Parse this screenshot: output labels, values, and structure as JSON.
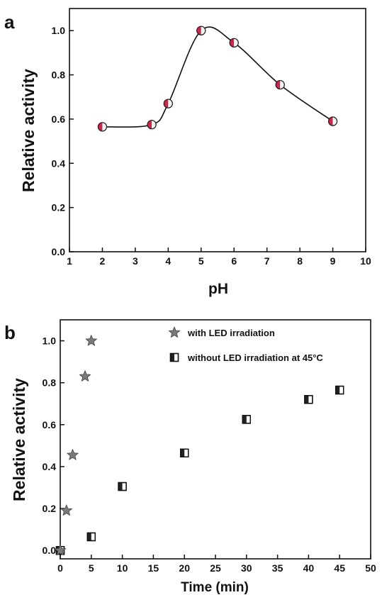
{
  "chart_data": [
    {
      "type": "scatter",
      "panel_label": "a",
      "xlabel": "pH",
      "ylabel": "Relative activity",
      "xlim": [
        1,
        10
      ],
      "ylim": [
        0.0,
        1.1
      ],
      "xticks": [
        "1",
        "2",
        "3",
        "4",
        "5",
        "6",
        "7",
        "8",
        "9",
        "10"
      ],
      "yticks": [
        "0.0",
        "0.2",
        "0.4",
        "0.6",
        "0.8",
        "1.0"
      ],
      "fit_line": "smooth spline through points",
      "series": [
        {
          "x": [
            2,
            3.5,
            4,
            5,
            6,
            7.4,
            9
          ],
          "y": [
            0.565,
            0.575,
            0.67,
            1.0,
            0.945,
            0.755,
            0.59
          ],
          "marker": "half-filled circle",
          "color": "#c8284a"
        }
      ]
    },
    {
      "type": "scatter",
      "panel_label": "b",
      "xlabel": "Time (min)",
      "ylabel": "Relative activity",
      "xlim": [
        0,
        50
      ],
      "ylim": [
        -0.04,
        1.1
      ],
      "xticks": [
        "0",
        "5",
        "10",
        "15",
        "20",
        "25",
        "30",
        "35",
        "40",
        "45",
        "50"
      ],
      "yticks": [
        "0.0",
        "0.2",
        "0.4",
        "0.6",
        "0.8",
        "1.0"
      ],
      "legend_position": "top-right",
      "series": [
        {
          "name": "with LED irradiation",
          "marker": "star",
          "color": "#7a7a7a",
          "x": [
            0,
            1,
            2,
            4,
            5
          ],
          "y": [
            0.0,
            0.19,
            0.455,
            0.83,
            1.0
          ]
        },
        {
          "name": "without LED irradiation at 45°C",
          "marker": "half-filled square",
          "color": "#222222",
          "x": [
            0,
            5,
            10,
            20,
            30,
            40,
            45
          ],
          "y": [
            0.0,
            0.065,
            0.305,
            0.465,
            0.625,
            0.72,
            0.765
          ]
        }
      ]
    }
  ]
}
